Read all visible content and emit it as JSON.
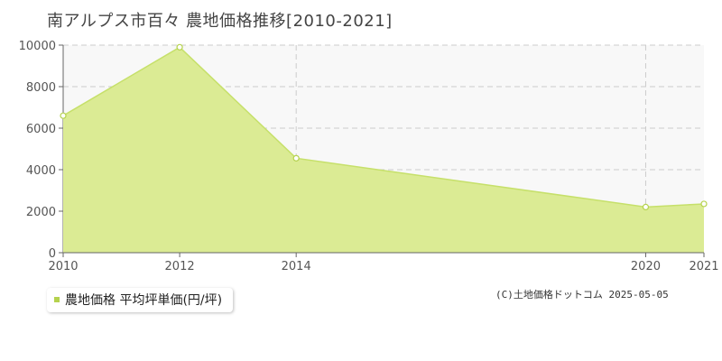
{
  "title": "南アルプス市百々 農地価格推移[2010-2021]",
  "credit": "(C)土地価格ドットコム 2025-05-05",
  "colors": {
    "fill": "#dbeb94",
    "line": "#c6e06a",
    "marker_stroke": "#b5d24e",
    "plot_background": "#f8f8f8",
    "grid": "#cccccc",
    "legend_swatch": "#b5d24e"
  },
  "chart_data": {
    "type": "area",
    "x": [
      2010,
      2012,
      2014,
      2020,
      2021
    ],
    "series": [
      {
        "name": "農地価格 平均坪単価(円/坪)",
        "values": [
          6600,
          9900,
          4550,
          2200,
          2350
        ]
      }
    ],
    "x_ticks": [
      "2010",
      "2012",
      "2014",
      "2020",
      "2021"
    ],
    "y_ticks": [
      "0",
      "2000",
      "4000",
      "6000",
      "8000",
      "10000"
    ],
    "ylim": [
      0,
      10000
    ],
    "grid": true,
    "legend_position": "bottom-left"
  }
}
